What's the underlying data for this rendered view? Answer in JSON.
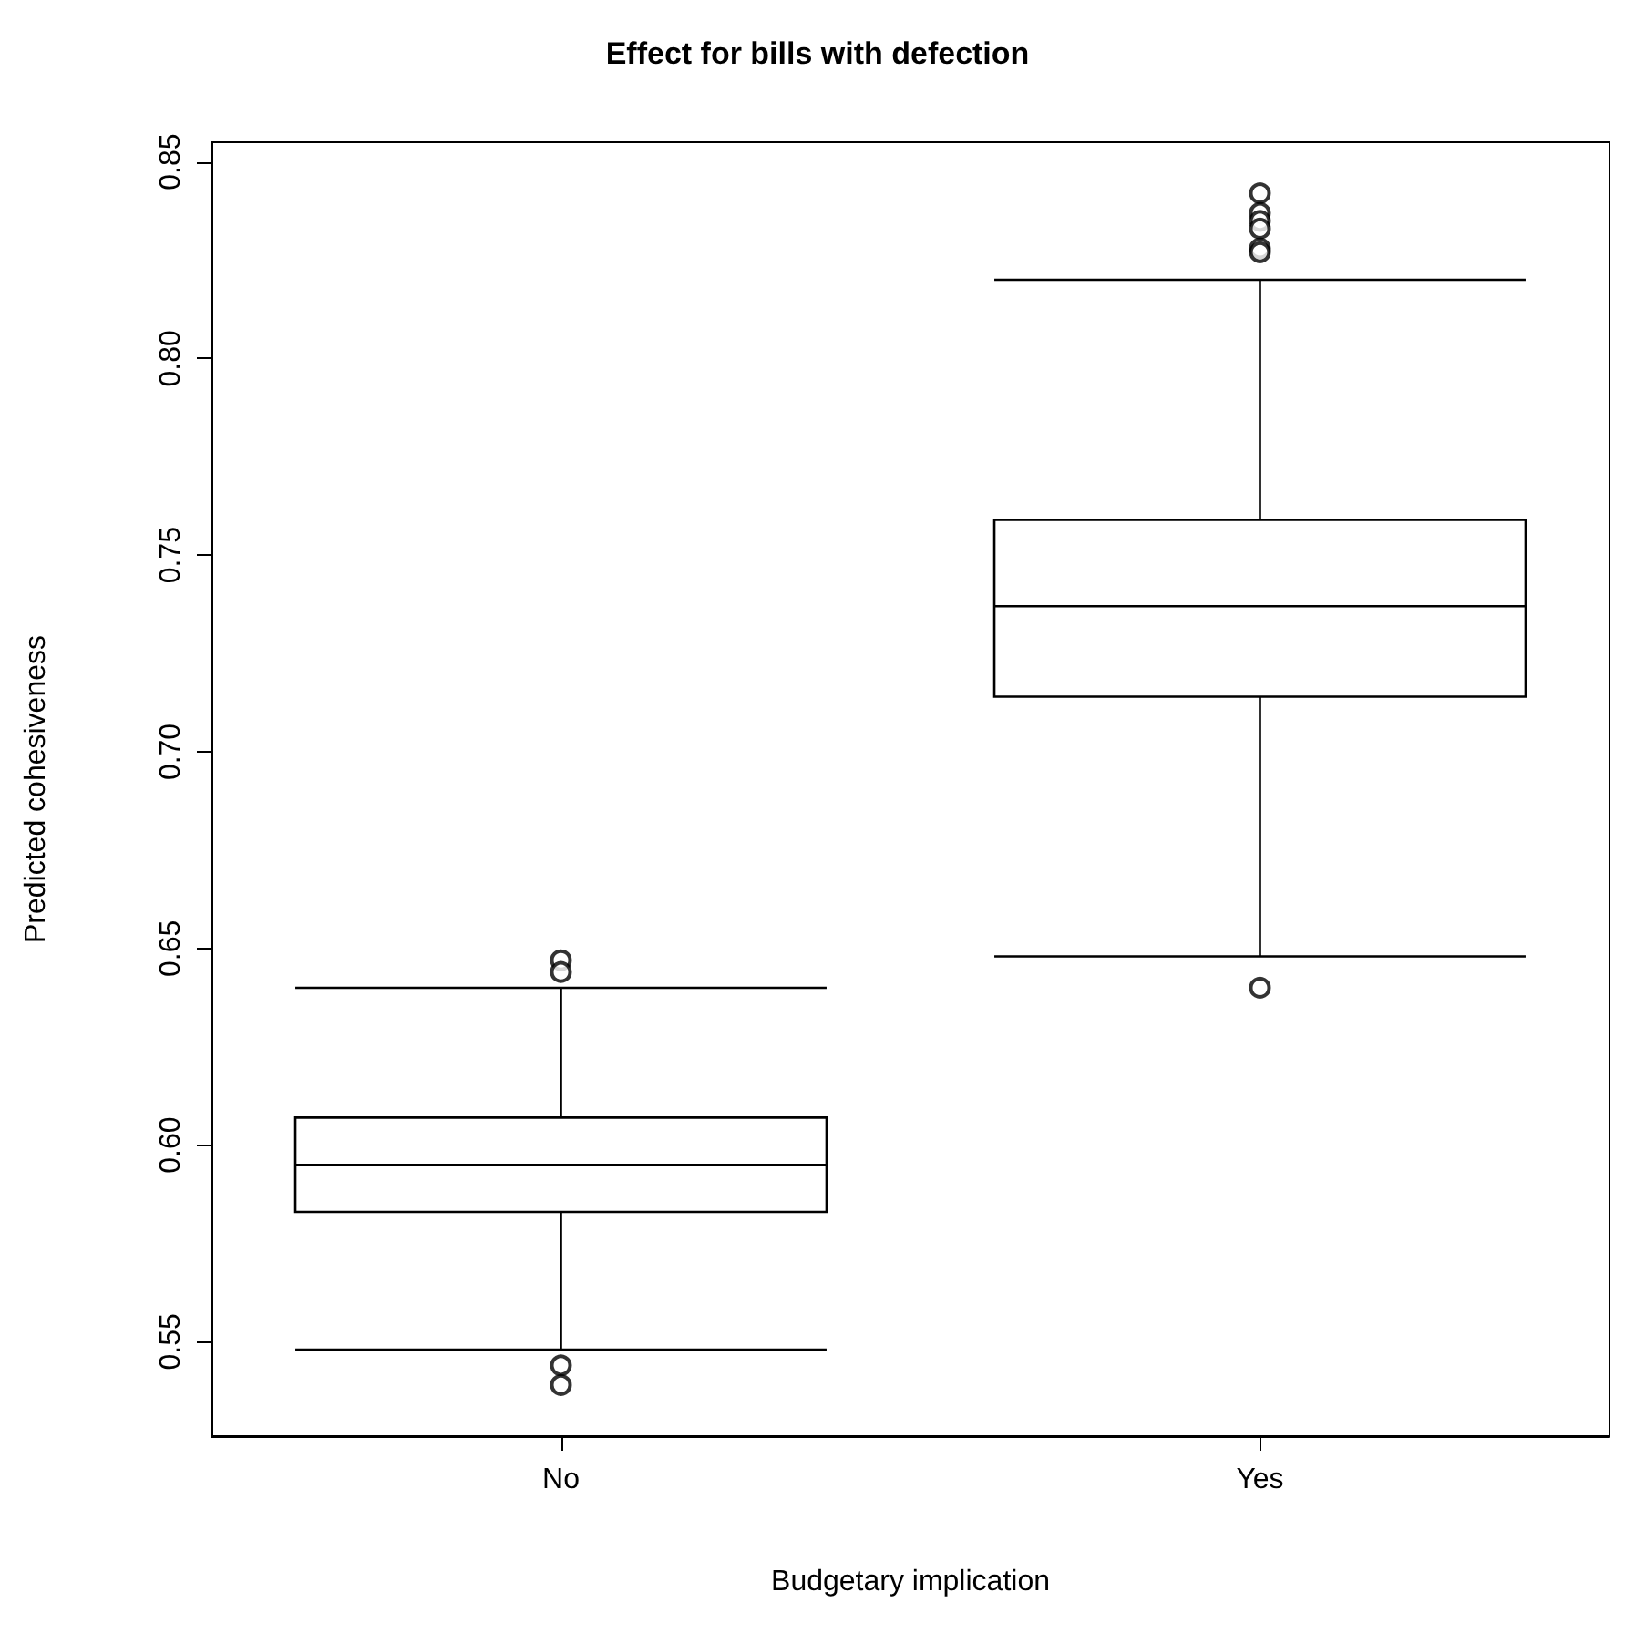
{
  "chart_data": {
    "type": "box",
    "title": "Effect for bills with defection",
    "xlabel": "Budgetary implication",
    "ylabel": "Predicted cohesiveness",
    "categories": [
      "No",
      "Yes"
    ],
    "boxes": [
      {
        "low": 0.548,
        "q1": 0.583,
        "median": 0.595,
        "q3": 0.607,
        "high": 0.64,
        "outliers": [
          0.647,
          0.644,
          0.544,
          0.539
        ]
      },
      {
        "low": 0.648,
        "q1": 0.714,
        "median": 0.737,
        "q3": 0.759,
        "high": 0.82,
        "outliers": [
          0.842,
          0.837,
          0.835,
          0.833,
          0.828,
          0.827,
          0.64
        ]
      }
    ],
    "ylim": [
      0.526,
      0.855
    ],
    "yticks": [
      0.55,
      {
        "value": 0.6,
        "label": "0.60"
      },
      0.65,
      {
        "value": 0.7,
        "label": "0.70"
      },
      0.75,
      {
        "value": 0.8,
        "label": "0.80"
      },
      0.85
    ]
  }
}
